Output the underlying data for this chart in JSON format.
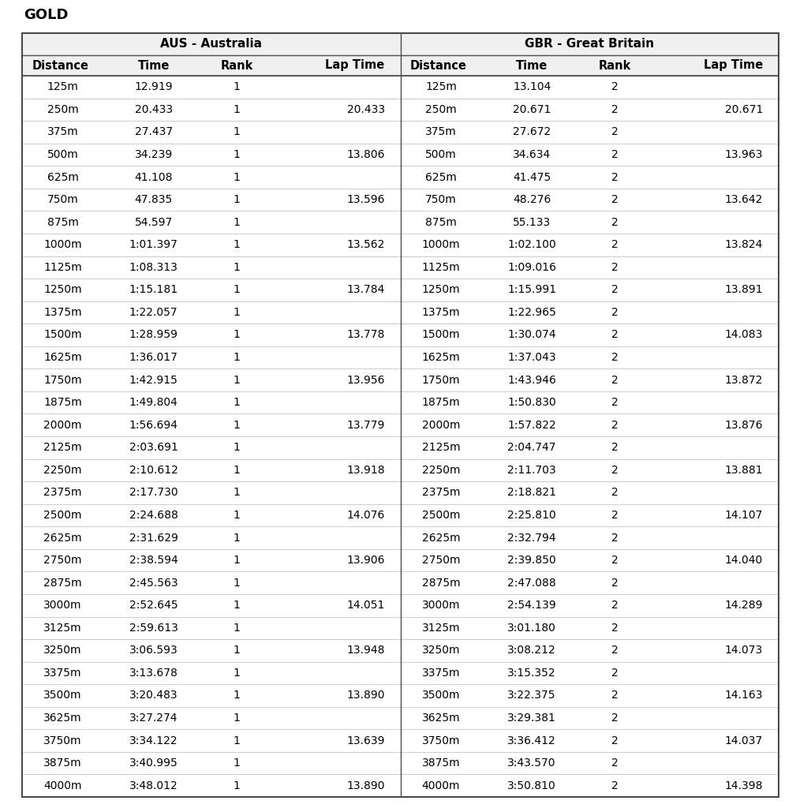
{
  "title": "GOLD",
  "aus_header": "AUS - Australia",
  "gbr_header": "GBR - Great Britain",
  "col_headers": [
    "Distance",
    "Time",
    "Rank",
    "Lap Time"
  ],
  "aus_data": [
    [
      "125m",
      "12.919",
      "1",
      ""
    ],
    [
      "250m",
      "20.433",
      "1",
      "20.433"
    ],
    [
      "375m",
      "27.437",
      "1",
      ""
    ],
    [
      "500m",
      "34.239",
      "1",
      "13.806"
    ],
    [
      "625m",
      "41.108",
      "1",
      ""
    ],
    [
      "750m",
      "47.835",
      "1",
      "13.596"
    ],
    [
      "875m",
      "54.597",
      "1",
      ""
    ],
    [
      "1000m",
      "1:01.397",
      "1",
      "13.562"
    ],
    [
      "1125m",
      "1:08.313",
      "1",
      ""
    ],
    [
      "1250m",
      "1:15.181",
      "1",
      "13.784"
    ],
    [
      "1375m",
      "1:22.057",
      "1",
      ""
    ],
    [
      "1500m",
      "1:28.959",
      "1",
      "13.778"
    ],
    [
      "1625m",
      "1:36.017",
      "1",
      ""
    ],
    [
      "1750m",
      "1:42.915",
      "1",
      "13.956"
    ],
    [
      "1875m",
      "1:49.804",
      "1",
      ""
    ],
    [
      "2000m",
      "1:56.694",
      "1",
      "13.779"
    ],
    [
      "2125m",
      "2:03.691",
      "1",
      ""
    ],
    [
      "2250m",
      "2:10.612",
      "1",
      "13.918"
    ],
    [
      "2375m",
      "2:17.730",
      "1",
      ""
    ],
    [
      "2500m",
      "2:24.688",
      "1",
      "14.076"
    ],
    [
      "2625m",
      "2:31.629",
      "1",
      ""
    ],
    [
      "2750m",
      "2:38.594",
      "1",
      "13.906"
    ],
    [
      "2875m",
      "2:45.563",
      "1",
      ""
    ],
    [
      "3000m",
      "2:52.645",
      "1",
      "14.051"
    ],
    [
      "3125m",
      "2:59.613",
      "1",
      ""
    ],
    [
      "3250m",
      "3:06.593",
      "1",
      "13.948"
    ],
    [
      "3375m",
      "3:13.678",
      "1",
      ""
    ],
    [
      "3500m",
      "3:20.483",
      "1",
      "13.890"
    ],
    [
      "3625m",
      "3:27.274",
      "1",
      ""
    ],
    [
      "3750m",
      "3:34.122",
      "1",
      "13.639"
    ],
    [
      "3875m",
      "3:40.995",
      "1",
      ""
    ],
    [
      "4000m",
      "3:48.012",
      "1",
      "13.890"
    ]
  ],
  "gbr_data": [
    [
      "125m",
      "13.104",
      "2",
      ""
    ],
    [
      "250m",
      "20.671",
      "2",
      "20.671"
    ],
    [
      "375m",
      "27.672",
      "2",
      ""
    ],
    [
      "500m",
      "34.634",
      "2",
      "13.963"
    ],
    [
      "625m",
      "41.475",
      "2",
      ""
    ],
    [
      "750m",
      "48.276",
      "2",
      "13.642"
    ],
    [
      "875m",
      "55.133",
      "2",
      ""
    ],
    [
      "1000m",
      "1:02.100",
      "2",
      "13.824"
    ],
    [
      "1125m",
      "1:09.016",
      "2",
      ""
    ],
    [
      "1250m",
      "1:15.991",
      "2",
      "13.891"
    ],
    [
      "1375m",
      "1:22.965",
      "2",
      ""
    ],
    [
      "1500m",
      "1:30.074",
      "2",
      "14.083"
    ],
    [
      "1625m",
      "1:37.043",
      "2",
      ""
    ],
    [
      "1750m",
      "1:43.946",
      "2",
      "13.872"
    ],
    [
      "1875m",
      "1:50.830",
      "2",
      ""
    ],
    [
      "2000m",
      "1:57.822",
      "2",
      "13.876"
    ],
    [
      "2125m",
      "2:04.747",
      "2",
      ""
    ],
    [
      "2250m",
      "2:11.703",
      "2",
      "13.881"
    ],
    [
      "2375m",
      "2:18.821",
      "2",
      ""
    ],
    [
      "2500m",
      "2:25.810",
      "2",
      "14.107"
    ],
    [
      "2625m",
      "2:32.794",
      "2",
      ""
    ],
    [
      "2750m",
      "2:39.850",
      "2",
      "14.040"
    ],
    [
      "2875m",
      "2:47.088",
      "2",
      ""
    ],
    [
      "3000m",
      "2:54.139",
      "2",
      "14.289"
    ],
    [
      "3125m",
      "3:01.180",
      "2",
      ""
    ],
    [
      "3250m",
      "3:08.212",
      "2",
      "14.073"
    ],
    [
      "3375m",
      "3:15.352",
      "2",
      ""
    ],
    [
      "3500m",
      "3:22.375",
      "2",
      "14.163"
    ],
    [
      "3625m",
      "3:29.381",
      "2",
      ""
    ],
    [
      "3750m",
      "3:36.412",
      "2",
      "14.037"
    ],
    [
      "3875m",
      "3:43.570",
      "2",
      ""
    ],
    [
      "4000m",
      "3:50.810",
      "2",
      "14.398"
    ]
  ],
  "bg_color": "#ffffff",
  "text_color": "#000000",
  "border_color": "#4a4a4a",
  "font_family": "DejaVu Sans",
  "fig_width": 10.09,
  "fig_height": 10.24,
  "dpi": 100
}
